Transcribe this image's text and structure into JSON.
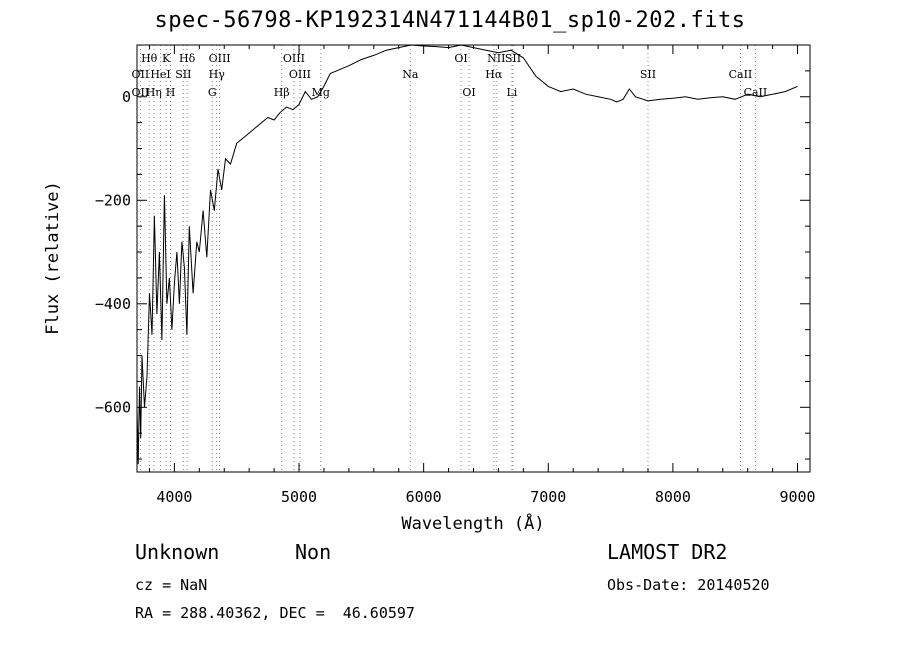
{
  "title": "spec-56798-KP192314N471144B01_sp10-202.fits",
  "footer": {
    "class": "Unknown",
    "subclass": "Non",
    "survey": "LAMOST DR2",
    "cz": "cz = NaN",
    "obs_date": "Obs-Date: 20140520",
    "radec": "RA = 288.40362, DEC =  46.60597"
  },
  "chart_data": {
    "type": "line",
    "xlabel": "Wavelength (Å)",
    "ylabel": "Flux (relative)",
    "xlim": [
      3700,
      9100
    ],
    "ylim": [
      -725,
      100
    ],
    "xticks": [
      4000,
      5000,
      6000,
      7000,
      8000,
      9000
    ],
    "yticks": [
      0,
      -200,
      -400,
      -600
    ],
    "line_color": "#000000",
    "marker_line_color": "#888888",
    "series": [
      {
        "x": [
          3700,
          3710,
          3720,
          3730,
          3740,
          3760,
          3780,
          3800,
          3820,
          3840,
          3860,
          3880,
          3900,
          3920,
          3940,
          3960,
          3980,
          4000,
          4020,
          4040,
          4060,
          4080,
          4100,
          4120,
          4150,
          4180,
          4200,
          4230,
          4260,
          4290,
          4320,
          4350,
          4380,
          4410,
          4450,
          4500,
          4550,
          4600,
          4650,
          4700,
          4750,
          4800,
          4850,
          4900,
          4950,
          5000,
          5050,
          5100,
          5150,
          5200,
          5250,
          5300,
          5400,
          5500,
          5600,
          5700,
          5800,
          5900,
          6000,
          6100,
          6200,
          6300,
          6400,
          6500,
          6600,
          6700,
          6800,
          6900,
          7000,
          7100,
          7200,
          7300,
          7400,
          7500,
          7550,
          7600,
          7650,
          7700,
          7800,
          7900,
          8000,
          8100,
          8200,
          8300,
          8400,
          8500,
          8550,
          8600,
          8700,
          8800,
          8900,
          9000
        ],
        "y": [
          -600,
          -710,
          -560,
          -660,
          -500,
          -600,
          -540,
          -380,
          -460,
          -230,
          -420,
          -300,
          -470,
          -190,
          -400,
          -350,
          -450,
          -360,
          -300,
          -400,
          -280,
          -330,
          -460,
          -250,
          -380,
          -280,
          -300,
          -220,
          -310,
          -180,
          -220,
          -140,
          -180,
          -120,
          -130,
          -90,
          -80,
          -70,
          -60,
          -50,
          -40,
          -45,
          -30,
          -20,
          -25,
          -15,
          10,
          -5,
          0,
          20,
          45,
          50,
          60,
          72,
          80,
          90,
          95,
          100,
          98,
          97,
          95,
          100,
          95,
          90,
          85,
          90,
          75,
          40,
          20,
          10,
          15,
          5,
          0,
          -5,
          -10,
          -5,
          15,
          0,
          -8,
          -5,
          -3,
          0,
          -5,
          -2,
          0,
          -5,
          0,
          5,
          0,
          5,
          10,
          20
        ]
      }
    ],
    "markers_top": [
      {
        "label": "Hθ",
        "x": 3798
      },
      {
        "label": "K",
        "x": 3934
      },
      {
        "label": "Hδ",
        "x": 4102
      },
      {
        "label": "OIII",
        "x": 4363
      },
      {
        "label": "OIII",
        "x": 4959
      },
      {
        "label": "OI",
        "x": 6300
      },
      {
        "label": "NII",
        "x": 6583
      },
      {
        "label": "SII",
        "x": 6717
      }
    ],
    "markers_mid": [
      {
        "label": "OII",
        "x": 3727
      },
      {
        "label": "HeI",
        "x": 3889
      },
      {
        "label": "SII",
        "x": 4072
      },
      {
        "label": "Hγ",
        "x": 4340
      },
      {
        "label": "OIII",
        "x": 5007
      },
      {
        "label": "Na",
        "x": 5893
      },
      {
        "label": "Hα",
        "x": 6563
      },
      {
        "label": "SII",
        "x": 7800
      },
      {
        "label": "CaII",
        "x": 8542
      }
    ],
    "markers_low": [
      {
        "label": "OII",
        "x": 3727
      },
      {
        "label": "Hη",
        "x": 3835
      },
      {
        "label": "H",
        "x": 3969
      },
      {
        "label": "G",
        "x": 4304
      },
      {
        "label": "Hβ",
        "x": 4861
      },
      {
        "label": "Mg",
        "x": 5175
      },
      {
        "label": "OI",
        "x": 6364
      },
      {
        "label": "Li",
        "x": 6708
      },
      {
        "label": "CaII",
        "x": 8662
      }
    ]
  }
}
